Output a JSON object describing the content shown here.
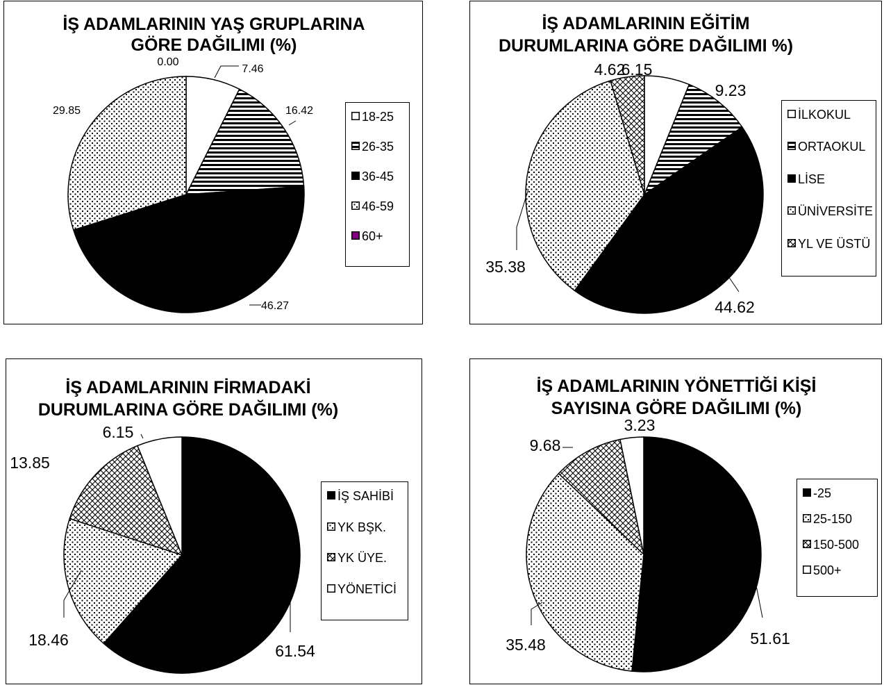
{
  "chart_data": [
    {
      "type": "pie",
      "title": "İŞ ADAMLARININ YAŞ GRUPLARINA GÖRE DAĞILIMI (%)",
      "title_lines": [
        "İŞ ADAMLARININ YAŞ GRUPLARINA",
        "GÖRE DAĞILIMI (%)"
      ],
      "categories": [
        "18-25",
        "26-35",
        "36-45",
        "46-59",
        "60+"
      ],
      "values": [
        7.46,
        16.42,
        46.27,
        29.85,
        0.0
      ],
      "labels": [
        "7.46",
        "16.42",
        "46.27",
        "29.85",
        "0.00"
      ],
      "legend": "right"
    },
    {
      "type": "pie",
      "title": "İŞ ADAMLARININ EĞİTİM DURUMLARINA GÖRE DAĞILIMI %)",
      "title_lines": [
        "İŞ ADAMLARININ EĞİTİM",
        "DURUMLARINA GÖRE DAĞILIMI %)"
      ],
      "categories": [
        "İLKOKUL",
        "ORTAOKUL",
        "LİSE",
        "ÜNİVERSİTE",
        "YL VE ÜSTÜ"
      ],
      "values": [
        6.15,
        9.23,
        44.62,
        35.38,
        4.62
      ],
      "labels": [
        "6.15",
        "9.23",
        "44.62",
        "35.38",
        "4.62"
      ],
      "legend": "right"
    },
    {
      "type": "pie",
      "title": "İŞ ADAMLARININ FİRMADAKİ DURUMLARINA GÖRE DAĞILIMI (%)",
      "title_lines": [
        "İŞ ADAMLARININ FİRMADAKİ",
        "DURUMLARINA GÖRE DAĞILIMI (%)"
      ],
      "categories": [
        "İŞ SAHİBİ",
        "YK BŞK.",
        "YK ÜYE.",
        "YÖNETİCİ"
      ],
      "values": [
        61.54,
        18.46,
        13.85,
        6.15
      ],
      "labels": [
        "61.54",
        "18.46",
        "13.85",
        "6.15"
      ],
      "legend": "right"
    },
    {
      "type": "pie",
      "title": "İŞ ADAMLARININ YÖNETTİĞİ KİŞİ SAYISINA GÖRE DAĞILIMI (%)",
      "title_lines": [
        "İŞ ADAMLARININ YÖNETTİĞİ KİŞİ",
        "SAYISINA  GÖRE DAĞILIMI (%)"
      ],
      "categories": [
        "-25",
        "25-150",
        "150-500",
        "500+"
      ],
      "values": [
        51.61,
        35.48,
        9.68,
        3.23
      ],
      "labels": [
        "51.61",
        "35.48",
        "9.68",
        "3.23"
      ],
      "legend": "right"
    }
  ],
  "colors": {
    "solid": "#000000",
    "background": "#ffffff",
    "accent_60plus": "#800080"
  }
}
